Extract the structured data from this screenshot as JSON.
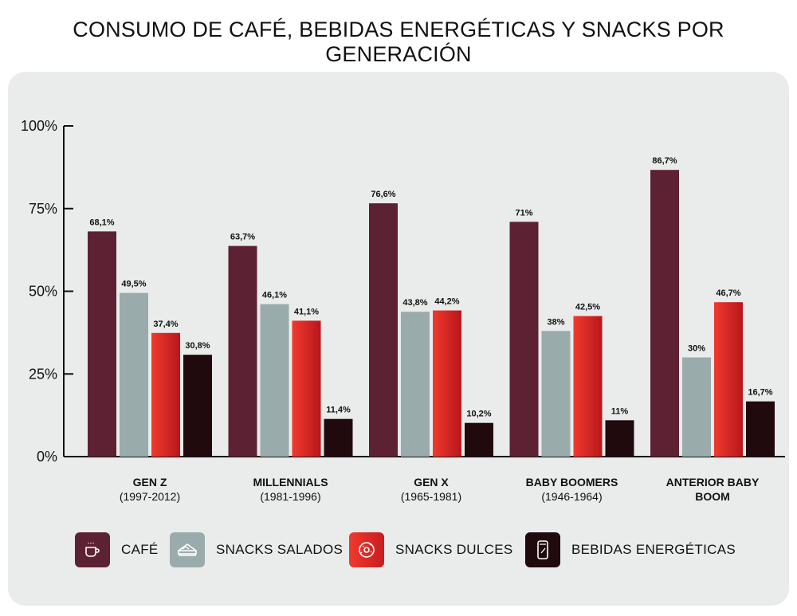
{
  "title": "CONSUMO DE CAFÉ, BEBIDAS ENERGÉTICAS Y SNACKS POR GENERACIÓN",
  "colors": {
    "panel": "#e9eceb",
    "axis": "#111111"
  },
  "chart_data": {
    "type": "bar",
    "title": "CONSUMO DE CAFÉ, BEBIDAS ENERGÉTICAS Y SNACKS POR GENERACIÓN",
    "xlabel": "",
    "ylabel": "",
    "ylim": [
      0,
      100
    ],
    "yticks": [
      0,
      25,
      50,
      75,
      100
    ],
    "ytick_labels": [
      "0%",
      "25%",
      "50%",
      "75%",
      "100%"
    ],
    "grid": false,
    "legend_position": "bottom",
    "categories": [
      {
        "name": "GEN Z",
        "years": "(1997-2012)"
      },
      {
        "name": "MILLENNIALS",
        "years": "(1981-1996)"
      },
      {
        "name": "GEN X",
        "years": "(1965-1981)"
      },
      {
        "name": "BABY BOOMERS",
        "years": "(1946-1964)"
      },
      {
        "name": "ANTERIOR BABY BOOM",
        "years": ""
      }
    ],
    "series": [
      {
        "name": "CAFÉ",
        "color": "#5c2233",
        "icon": "coffee-cup-icon",
        "values": [
          68.1,
          63.7,
          76.6,
          71,
          86.7
        ],
        "labels": [
          "68,1%",
          "63,7%",
          "76,6%",
          "71%",
          "86,7%"
        ]
      },
      {
        "name": "SNACKS SALADOS",
        "color": "#9aabab",
        "icon": "sandwich-icon",
        "values": [
          49.5,
          46.1,
          43.8,
          38,
          30
        ],
        "labels": [
          "49,5%",
          "46,1%",
          "43,8%",
          "38%",
          "30%"
        ]
      },
      {
        "name": "SNACKS DULCES",
        "color": "#e5302a",
        "icon": "donut-icon",
        "values": [
          37.4,
          41.1,
          44.2,
          42.5,
          46.7
        ],
        "labels": [
          "37,4%",
          "41,1%",
          "44,2%",
          "42,5%",
          "46,7%"
        ]
      },
      {
        "name": "BEBIDAS ENERGÉTICAS",
        "color": "#200a0e",
        "icon": "energy-can-icon",
        "values": [
          30.8,
          11.4,
          10.2,
          11,
          16.7
        ],
        "labels": [
          "30,8%",
          "11,4%",
          "10,2%",
          "11%",
          "16,7%"
        ]
      }
    ]
  }
}
